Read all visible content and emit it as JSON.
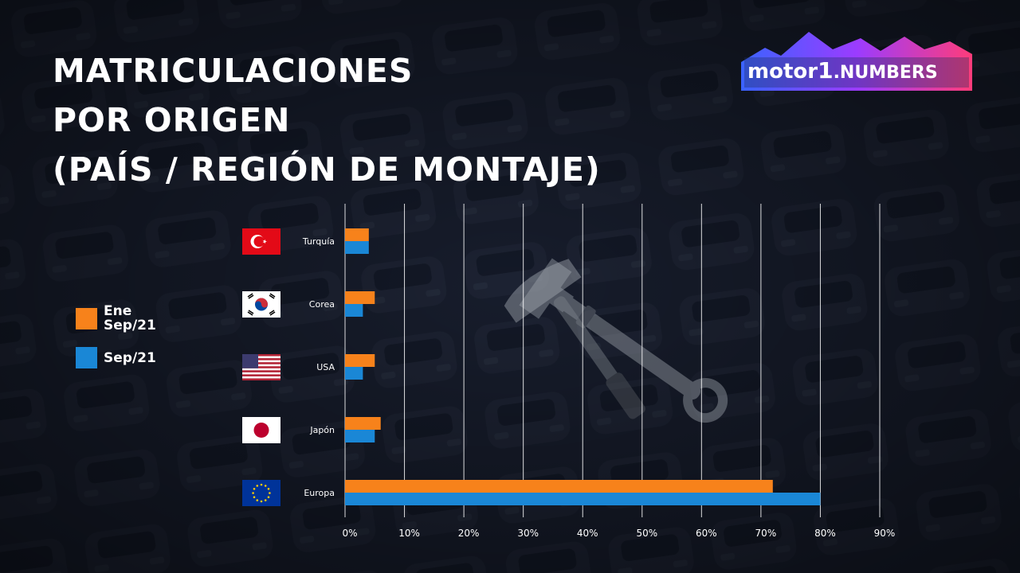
{
  "title_lines": [
    "MATRICULACIONES",
    "POR ORIGEN",
    "(PAÍS / REGIÓN DE MONTAJE)"
  ],
  "logo": {
    "text_left": "motor",
    "text_mark": "1",
    "text_right": ".NUMBERS"
  },
  "legend": [
    {
      "label": "Ene Sep/21",
      "color": "#f7821b"
    },
    {
      "label": "Sep/21",
      "color": "#1a87d6"
    }
  ],
  "flags": [
    "turkey-flag-icon",
    "south-korea-flag-icon",
    "usa-flag-icon",
    "japan-flag-icon",
    "eu-flag-icon"
  ],
  "chart_data": {
    "type": "bar",
    "orientation": "horizontal",
    "categories": [
      "Turquía",
      "Corea",
      "USA",
      "Japón",
      "Europa"
    ],
    "series": [
      {
        "name": "Ene Sep/21",
        "color": "#f7821b",
        "values": [
          4,
          5,
          5,
          6,
          72
        ]
      },
      {
        "name": "Sep/21",
        "color": "#1a87d6",
        "values": [
          4,
          3,
          3,
          5,
          80
        ]
      }
    ],
    "xlim": [
      0,
      90
    ],
    "xticks": [
      "0%",
      "10%",
      "20%",
      "30%",
      "40%",
      "50%",
      "60%",
      "70%",
      "80%",
      "90%"
    ],
    "grid": true,
    "legend_position": "left"
  }
}
